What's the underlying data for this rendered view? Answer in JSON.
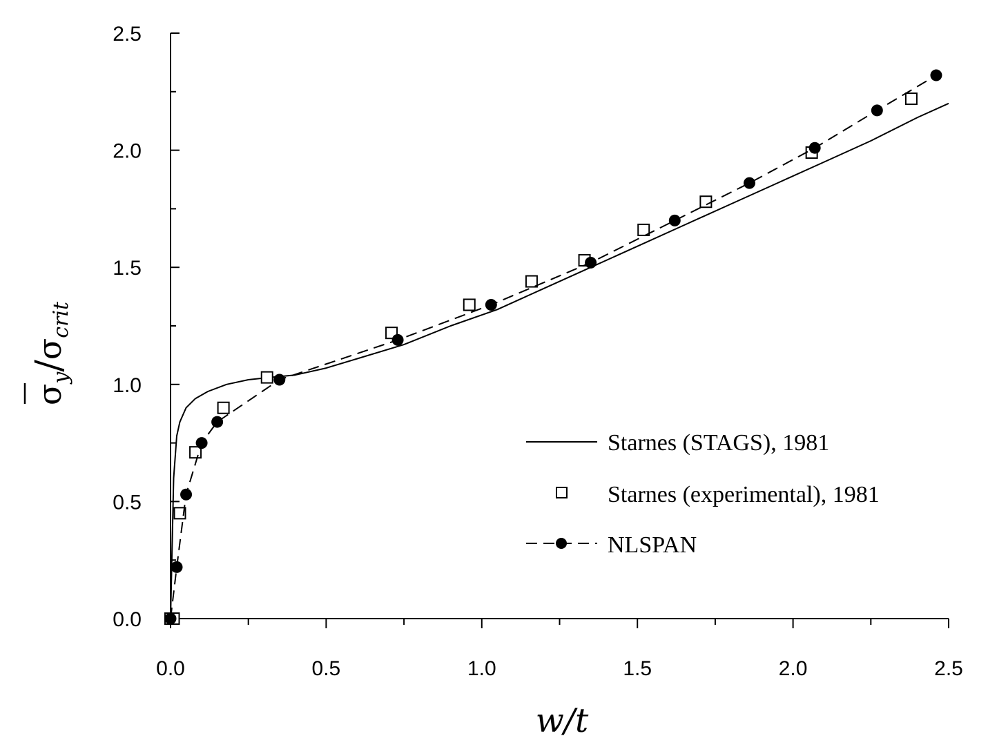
{
  "chart_data": {
    "type": "line",
    "title": "",
    "xlabel": "w/t",
    "ylabel": {
      "numerator_symbol": "σ",
      "numerator_subscript": "y",
      "separator": "/",
      "denominator_symbol": "σ",
      "denominator_subscript": "crit"
    },
    "xlim": [
      0,
      2.5
    ],
    "ylim": [
      0,
      2.5
    ],
    "xticks": [
      "0.0",
      "0.5",
      "1.0",
      "1.5",
      "2.0",
      "2.5"
    ],
    "yticks": [
      "0.0",
      "0.5",
      "1.0",
      "1.5",
      "2.0",
      "2.5"
    ],
    "grid": false,
    "legend_position": "bottom-right",
    "series": [
      {
        "name": "Starnes (STAGS),  1981",
        "style": "solid-line",
        "x": [
          0.0,
          0.01,
          0.02,
          0.03,
          0.05,
          0.08,
          0.12,
          0.18,
          0.25,
          0.32,
          0.4,
          0.5,
          0.6,
          0.75,
          0.9,
          1.05,
          1.2,
          1.35,
          1.5,
          1.65,
          1.8,
          1.95,
          2.1,
          2.25,
          2.4,
          2.5
        ],
        "y": [
          0.0,
          0.6,
          0.78,
          0.84,
          0.9,
          0.94,
          0.97,
          1.0,
          1.02,
          1.03,
          1.04,
          1.07,
          1.11,
          1.17,
          1.25,
          1.32,
          1.41,
          1.5,
          1.59,
          1.68,
          1.77,
          1.86,
          1.95,
          2.04,
          2.14,
          2.2
        ]
      },
      {
        "name": "Starnes (experimental), 1981",
        "style": "open-square",
        "x": [
          0.0,
          0.01,
          0.03,
          0.08,
          0.17,
          0.31,
          0.71,
          0.96,
          1.16,
          1.33,
          1.52,
          1.72,
          2.06,
          2.38
        ],
        "y": [
          0.0,
          0.0,
          0.45,
          0.71,
          0.9,
          1.03,
          1.22,
          1.34,
          1.44,
          1.53,
          1.66,
          1.78,
          1.99,
          2.22
        ]
      },
      {
        "name": "NLSPAN",
        "style": "dashed-line-filled-circle",
        "x": [
          0.0,
          0.02,
          0.05,
          0.1,
          0.15,
          0.35,
          0.73,
          1.03,
          1.35,
          1.62,
          1.86,
          2.07,
          2.27,
          2.46
        ],
        "y": [
          0.0,
          0.22,
          0.53,
          0.75,
          0.84,
          1.02,
          1.19,
          1.34,
          1.52,
          1.7,
          1.86,
          2.01,
          2.17,
          2.32
        ]
      }
    ]
  }
}
